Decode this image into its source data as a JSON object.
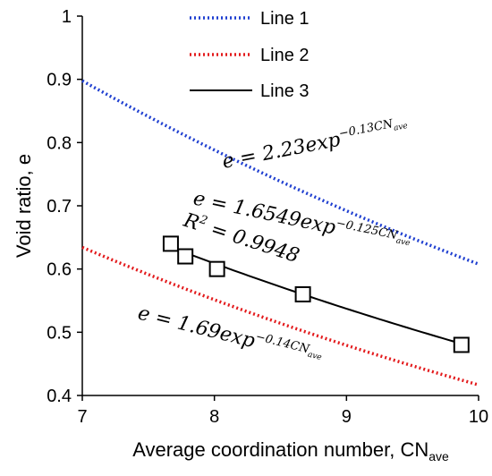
{
  "chart_data": {
    "type": "line",
    "xlabel": "Average coordination number, CN",
    "xlabel_sub": "ave",
    "ylabel": "Void ratio, e",
    "xlim": [
      7,
      10
    ],
    "ylim": [
      0.4,
      1.0
    ],
    "x_ticks": [
      "7",
      "8",
      "9",
      "10"
    ],
    "y_ticks": [
      "0.4",
      "0.5",
      "0.6",
      "0.7",
      "0.8",
      "0.9",
      "1"
    ],
    "grid": false,
    "legend_position": "top-left",
    "series": [
      {
        "name": "Line 1",
        "color": "#1f3fd0",
        "style": "dotted",
        "a": 2.23,
        "b": 0.13
      },
      {
        "name": "Line 2",
        "color": "#e31a1c",
        "style": "dotted",
        "a": 1.69,
        "b": 0.14
      },
      {
        "name": "Line 3",
        "color": "#000000",
        "style": "solid",
        "a": 1.6549,
        "b": 0.125
      }
    ],
    "points": {
      "marker": "open-square",
      "x": [
        7.67,
        7.78,
        8.02,
        8.67,
        9.87
      ],
      "y": [
        0.64,
        0.62,
        0.6,
        0.56,
        0.48
      ]
    },
    "annotations": {
      "line1": {
        "lhs": "e = 2.23exp",
        "exp": "−0.13CN",
        "sub": "ave"
      },
      "line3": {
        "lhs": "e = 1.6549exp",
        "exp": "−0.125CN",
        "sub": "ave",
        "r2_lhs": "R",
        "r2_sup": "2",
        "r2_rhs": " = 0.9948"
      },
      "line2": {
        "lhs": "e = 1.69exp",
        "exp": "−0.14CN",
        "sub": "ave"
      }
    }
  }
}
